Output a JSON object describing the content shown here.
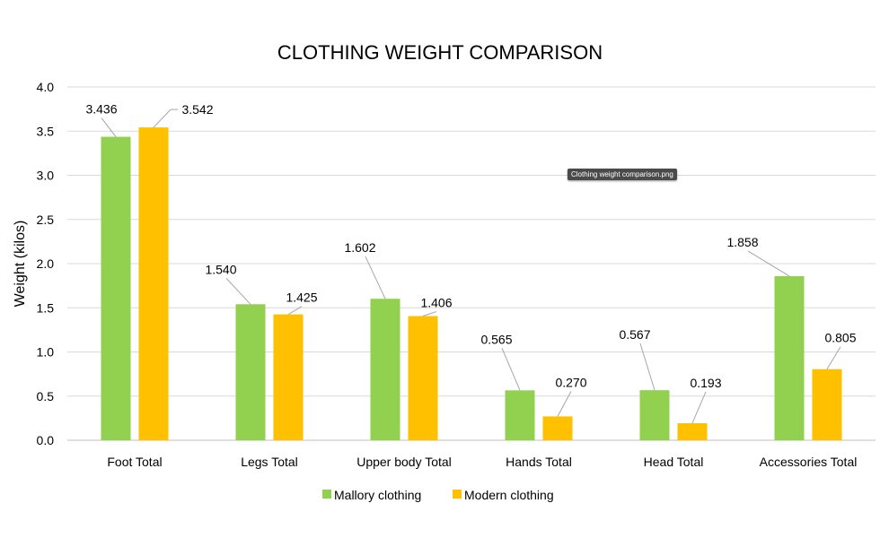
{
  "chart_data": {
    "type": "bar",
    "title": "CLOTHING WEIGHT COMPARISON",
    "xlabel": "",
    "ylabel": "Weight (kilos)",
    "ylim": [
      0,
      4.0
    ],
    "yticks": [
      "0.0",
      "0.5",
      "1.0",
      "1.5",
      "2.0",
      "2.5",
      "3.0",
      "3.5",
      "4.0"
    ],
    "grid": true,
    "legend_position": "bottom",
    "categories": [
      "Foot Total",
      "Legs Total",
      "Upper body Total",
      "Hands Total",
      "Head Total",
      "Accessories Total"
    ],
    "series": [
      {
        "name": "Mallory clothing",
        "color": "#92D050",
        "values": [
          3.436,
          1.54,
          1.602,
          0.565,
          0.567,
          1.858
        ],
        "labels": [
          "3.436",
          "1.540",
          "1.602",
          "0.565",
          "0.567",
          "1.858"
        ]
      },
      {
        "name": "Modern clothing",
        "color": "#FFC000",
        "values": [
          3.542,
          1.425,
          1.406,
          0.27,
          0.193,
          0.805
        ],
        "labels": [
          "3.542",
          "1.425",
          "1.406",
          "0.270",
          "0.193",
          "0.805"
        ]
      }
    ]
  },
  "tooltip": "Clothing weight comparison.png"
}
